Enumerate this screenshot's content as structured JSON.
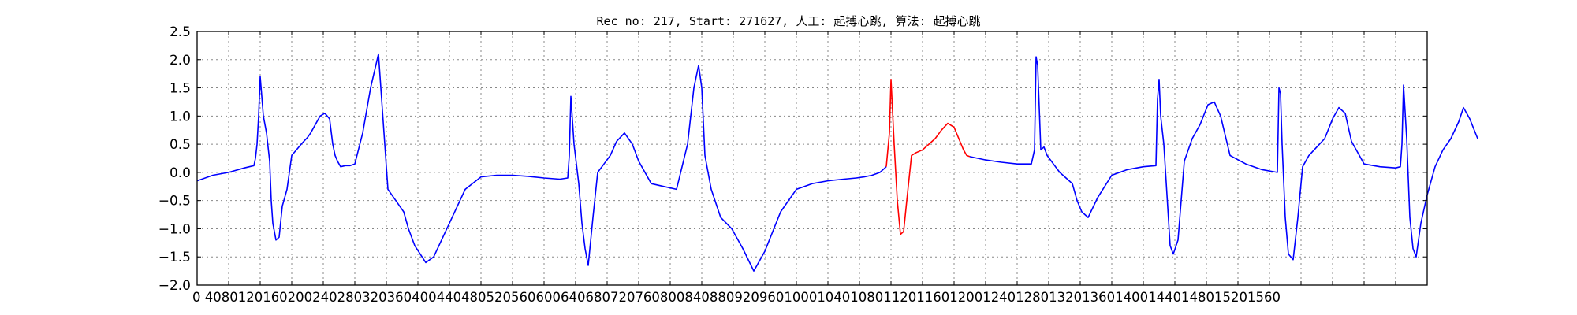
{
  "chart_data": {
    "type": "line",
    "title": "Rec_no: 217, Start: 271627, 人工: 起搏心跳, 算法: 起搏心跳",
    "xlabel": "",
    "ylabel": "",
    "xlim": [
      0,
      1560
    ],
    "ylim": [
      -2.0,
      2.5
    ],
    "grid": true,
    "legend": "none",
    "y_ticks": [
      "2.5",
      "2.0",
      "1.5",
      "1.0",
      "0.5",
      "0.0",
      "−0.5",
      "−1.0",
      "−1.5",
      "−2.0"
    ],
    "x_tick_values": [
      0,
      40,
      80,
      120,
      160,
      200,
      240,
      280,
      320,
      360,
      400,
      440,
      480,
      520,
      560,
      600,
      640,
      680,
      720,
      760,
      800,
      840,
      880,
      920,
      960,
      1000,
      1040,
      1080,
      1120,
      1160,
      1200,
      1240,
      1280,
      1320,
      1360,
      1400,
      1440,
      1480,
      1520,
      1560
    ],
    "x_tick_label_strip": "0 4080120160200240280320360400440480520560600640680720760800840880920960100010401080112011601200124012801320136014001440148015201560",
    "colors": {
      "main": "#0000ff",
      "highlight": "#ff0000",
      "grid": "#888888"
    },
    "series": [
      {
        "color": "#0000ff",
        "x": [
          0,
          20,
          40,
          60,
          72,
          74,
          76,
          78,
          80,
          84,
          88,
          92,
          94,
          96,
          100,
          104,
          108,
          114,
          120,
          132,
          140,
          144,
          148,
          156,
          162,
          168,
          172,
          175,
          178,
          182,
          188,
          194,
          200,
          210,
          220,
          230,
          242,
          252,
          262,
          268,
          276,
          290,
          300,
          320,
          340,
          360,
          380,
          400,
          420,
          440,
          460,
          470,
          472,
          474,
          478,
          484,
          488,
          492,
          496,
          502,
          508,
          516,
          524,
          532,
          542,
          552,
          560,
          576,
          592,
          608,
          622,
          630,
          636,
          640,
          644,
          652,
          664,
          678,
          692,
          706,
          720,
          740,
          760,
          780,
          800,
          820,
          836,
          846,
          856,
          866,
          870,
          874
        ],
        "y": [
          -0.15,
          -0.05,
          0.0,
          0.08,
          0.12,
          0.25,
          0.5,
          1.0,
          1.7,
          1.0,
          0.7,
          0.2,
          -0.5,
          -0.9,
          -1.2,
          -1.15,
          -0.6,
          -0.3,
          0.3,
          0.5,
          0.62,
          0.7,
          0.8,
          1.0,
          1.05,
          0.95,
          0.5,
          0.3,
          0.2,
          0.1,
          0.12,
          0.12,
          0.15,
          0.7,
          1.5,
          2.1,
          -0.3,
          -0.5,
          -0.7,
          -1.0,
          -1.3,
          -1.6,
          -1.5,
          -0.9,
          -0.3,
          -0.08,
          -0.05,
          -0.05,
          -0.07,
          -0.1,
          -0.12,
          -0.1,
          0.3,
          1.35,
          0.5,
          -0.2,
          -0.9,
          -1.35,
          -1.65,
          -0.8,
          0.0,
          0.15,
          0.3,
          0.55,
          0.7,
          0.5,
          0.2,
          -0.2,
          -0.25,
          -0.3,
          0.5,
          1.5,
          1.9,
          1.5,
          0.3,
          -0.3,
          -0.8,
          -1.0,
          -1.35,
          -1.75,
          -1.4,
          -0.7,
          -0.3,
          -0.2,
          -0.15,
          -0.12,
          -0.1,
          -0.08,
          -0.05,
          0.0,
          0.05,
          0.1
        ]
      },
      {
        "color": "#ff0000",
        "x": [
          874,
          878,
          880,
          884,
          888,
          892,
          896,
          900,
          906,
          912,
          920,
          928,
          936,
          944,
          952,
          960,
          966,
          972,
          976,
          980
        ],
        "y": [
          0.1,
          0.7,
          1.65,
          0.5,
          -0.5,
          -1.1,
          -1.05,
          -0.5,
          0.3,
          0.35,
          0.4,
          0.5,
          0.6,
          0.75,
          0.87,
          0.8,
          0.6,
          0.4,
          0.3,
          0.28
        ]
      },
      {
        "color": "#0000ff",
        "x": [
          980,
          1000,
          1020,
          1040,
          1058,
          1062,
          1064,
          1066,
          1070,
          1074,
          1078,
          1086,
          1094,
          1102,
          1110,
          1116,
          1122,
          1130,
          1142,
          1160,
          1180,
          1200,
          1216,
          1218,
          1220,
          1222,
          1226,
          1230,
          1234,
          1238,
          1244,
          1252,
          1262,
          1272,
          1282,
          1290,
          1298,
          1310,
          1330,
          1350,
          1370,
          1372,
          1374,
          1376,
          1380,
          1384,
          1390,
          1396,
          1402,
          1410,
          1420,
          1430,
          1440,
          1448,
          1456,
          1464,
          1480,
          1500,
          1520,
          1526,
          1528,
          1530,
          1534,
          1538,
          1542,
          1546,
          1552,
          1560,
          1570,
          1580,
          1590,
          1600,
          1606,
          1614,
          1624
        ],
        "y": [
          0.28,
          0.22,
          0.18,
          0.15,
          0.15,
          0.4,
          2.05,
          1.9,
          0.4,
          0.45,
          0.3,
          0.15,
          0.0,
          -0.1,
          -0.2,
          -0.5,
          -0.7,
          -0.8,
          -0.45,
          -0.05,
          0.05,
          0.1,
          0.12,
          1.3,
          1.65,
          1.0,
          0.5,
          -0.4,
          -1.3,
          -1.45,
          -1.2,
          0.2,
          0.6,
          0.85,
          1.2,
          1.25,
          1.0,
          0.3,
          0.15,
          0.05,
          0.0,
          1.5,
          1.4,
          0.5,
          -0.8,
          -1.45,
          -1.55,
          -0.8,
          0.1,
          0.3,
          0.45,
          0.6,
          0.95,
          1.15,
          1.05,
          0.55,
          0.15,
          0.1,
          0.08,
          0.1,
          0.5,
          1.55,
          0.6,
          -0.8,
          -1.35,
          -1.5,
          -0.9,
          -0.4,
          0.1,
          0.4,
          0.6,
          0.9,
          1.15,
          0.95,
          0.6
        ]
      }
    ]
  }
}
